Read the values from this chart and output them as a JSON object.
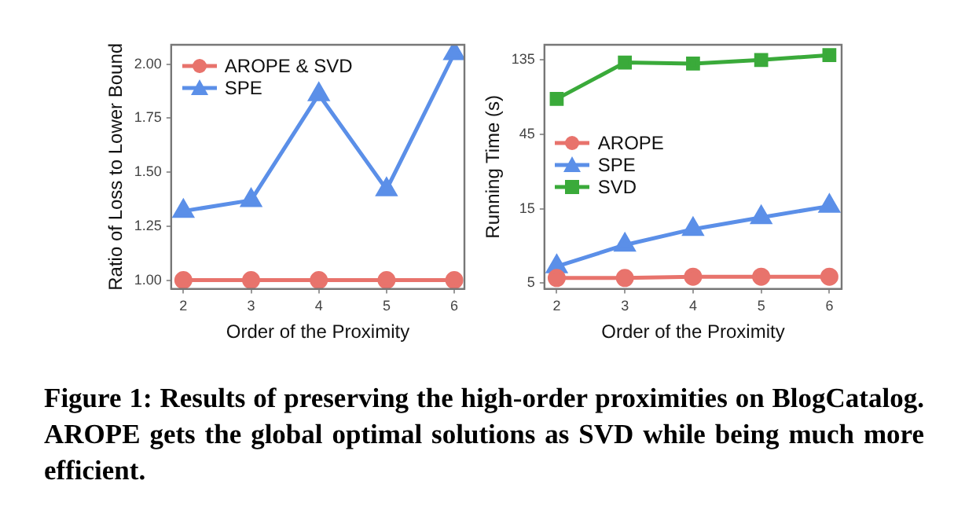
{
  "chart_data": [
    {
      "type": "line",
      "xlabel": "Order of the Proximity",
      "ylabel": "Ratio of Loss to Lower Bound",
      "x": [
        2,
        3,
        4,
        5,
        6
      ],
      "xlim": [
        1.82,
        6.15
      ],
      "xticks": [
        2,
        3,
        4,
        5,
        6
      ],
      "ylim": [
        0.96,
        2.09
      ],
      "yticks": [
        {
          "value": 1,
          "label": "1.00"
        },
        {
          "value": 1.25,
          "label": "1.25"
        },
        {
          "value": 1.5,
          "label": "1.50"
        },
        {
          "value": 1.75,
          "label": "1.75"
        },
        {
          "value": 2,
          "label": "2.00"
        }
      ],
      "grid": false,
      "legend": "top left",
      "line_style": "solid",
      "series": [
        {
          "name": "AROPE & SVD",
          "color": "#e8736c",
          "marker": "circle",
          "values": [
            1,
            1,
            1,
            1,
            1
          ]
        },
        {
          "name": "SPE",
          "color": "#5b8fe8",
          "marker": "triangle",
          "values": [
            1.32,
            1.37,
            1.86,
            1.42,
            2.05
          ]
        }
      ]
    },
    {
      "type": "line",
      "xlabel": "Order of the Proximity",
      "ylabel": "Running Time (s)",
      "x": [
        2,
        3,
        4,
        5,
        6
      ],
      "xlim": [
        1.82,
        6.18
      ],
      "xticks": [
        2,
        3,
        4,
        5,
        6
      ],
      "log": "y",
      "ylim": [
        4.6,
        169
      ],
      "yticks": [
        5,
        15,
        45,
        135
      ],
      "grid": false,
      "legend": "left",
      "line_style": "solid",
      "series": [
        {
          "name": "AROPE",
          "color": "#e8736c",
          "marker": "circle",
          "values": [
            5.4,
            5.4,
            5.5,
            5.5,
            5.5
          ]
        },
        {
          "name": "SPE",
          "color": "#5b8fe8",
          "marker": "triangle",
          "values": [
            6.4,
            8.8,
            11.1,
            13.2,
            15.6
          ]
        },
        {
          "name": "SVD",
          "color": "#3aaa3a",
          "marker": "square",
          "values": [
            76,
            130,
            128,
            135,
            145
          ]
        }
      ]
    },
    {
      "type": "other",
      "annotations": [
        "Figure 1: Results of preserving the high-order proximities on BlogCatalog. AROPE gets the global optimal solutions as SVD while being much more efficient."
      ]
    }
  ]
}
